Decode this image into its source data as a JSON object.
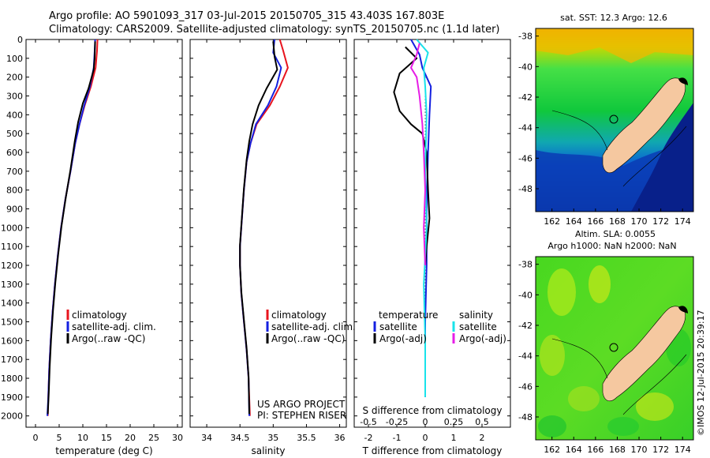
{
  "title_line1": "Argo profile: AO 5901093_317 03-Jul-2015 20150705_315 43.403S 167.803E",
  "title_line2": "Climatology: CARS2009. Satellite-adjusted climatology: synTS_20150705.nc (1.1d later)",
  "sst_title": "sat. SST: 12.3 Argo: 12.6",
  "sla_title1": "Altim. SLA: 0.0055",
  "sla_title2": "Argo h1000: NaN h2000: NaN",
  "project_line1": "US ARGO PROJECT",
  "project_line2": "PI: STEPHEN RISER",
  "watermark": "©IMOS 12-Jul-2015 20:39:17",
  "colors": {
    "climatology": "#e8141e",
    "satellite": "#1420e0",
    "argo": "#000000",
    "sal_satellite": "#19e3ea",
    "sal_argo": "#e61ee6",
    "land": "#f5c8a0"
  },
  "chart_data": [
    {
      "type": "line",
      "name": "temperature_profile",
      "xlabel": "temperature (deg C)",
      "ylabel": "",
      "xlim": [
        -2,
        31
      ],
      "ylim": [
        2060,
        0
      ],
      "xticks": [
        0,
        5,
        10,
        15,
        20,
        25,
        30
      ],
      "yticks": [
        0,
        100,
        200,
        300,
        400,
        500,
        600,
        700,
        800,
        900,
        1000,
        1100,
        1200,
        1300,
        1400,
        1500,
        1600,
        1700,
        1800,
        1900,
        2000
      ],
      "legend": [
        "climatology",
        "satellite-adj. clim.",
        "Argo(..raw -QC)"
      ],
      "legend_position": "lower-center",
      "series": [
        {
          "name": "climatology",
          "color_key": "climatology",
          "points": [
            [
              13.1,
              0
            ],
            [
              13.0,
              60
            ],
            [
              12.7,
              150
            ],
            [
              11.7,
              250
            ],
            [
              10.4,
              350
            ],
            [
              9.3,
              450
            ],
            [
              8.4,
              550
            ],
            [
              7.4,
              700
            ],
            [
              6.3,
              850
            ],
            [
              5.4,
              1000
            ],
            [
              4.7,
              1150
            ],
            [
              4.1,
              1300
            ],
            [
              3.6,
              1450
            ],
            [
              3.2,
              1600
            ],
            [
              2.9,
              1750
            ],
            [
              2.7,
              1900
            ],
            [
              2.6,
              2000
            ]
          ]
        },
        {
          "name": "satellite-adj. clim.",
          "color_key": "satellite",
          "points": [
            [
              12.6,
              0
            ],
            [
              12.5,
              60
            ],
            [
              12.3,
              150
            ],
            [
              11.5,
              250
            ],
            [
              10.3,
              350
            ],
            [
              9.3,
              450
            ],
            [
              8.4,
              550
            ],
            [
              7.4,
              700
            ],
            [
              6.3,
              850
            ],
            [
              5.4,
              1000
            ],
            [
              4.7,
              1150
            ],
            [
              4.1,
              1300
            ],
            [
              3.6,
              1450
            ],
            [
              3.2,
              1600
            ],
            [
              2.9,
              1750
            ],
            [
              2.7,
              1900
            ],
            [
              2.5,
              2000
            ]
          ]
        },
        {
          "name": "Argo(..raw -QC)",
          "color_key": "argo",
          "points": [
            [
              12.6,
              10
            ],
            [
              12.5,
              100
            ],
            [
              12.3,
              160
            ],
            [
              11.2,
              260
            ],
            [
              10.0,
              340
            ],
            [
              9.0,
              440
            ],
            [
              8.3,
              540
            ],
            [
              7.4,
              690
            ],
            [
              6.4,
              840
            ],
            [
              5.5,
              990
            ],
            [
              4.8,
              1140
            ],
            [
              4.2,
              1290
            ],
            [
              3.7,
              1440
            ],
            [
              3.3,
              1590
            ],
            [
              3.0,
              1740
            ],
            [
              2.8,
              1880
            ],
            [
              2.6,
              1990
            ]
          ]
        }
      ]
    },
    {
      "type": "line",
      "name": "salinity_profile",
      "xlabel": "salinity",
      "ylabel": "",
      "xlim": [
        33.75,
        36.1
      ],
      "ylim": [
        2060,
        0
      ],
      "xticks": [
        34,
        34.5,
        35,
        35.5,
        36
      ],
      "legend": [
        "climatology",
        "satellite-adj. clim.",
        "Argo(..raw -QC)"
      ],
      "legend_position": "lower-center",
      "series": [
        {
          "name": "climatology",
          "color_key": "climatology",
          "points": [
            [
              35.1,
              0
            ],
            [
              35.15,
              60
            ],
            [
              35.22,
              150
            ],
            [
              35.1,
              250
            ],
            [
              34.95,
              350
            ],
            [
              34.75,
              450
            ],
            [
              34.66,
              550
            ],
            [
              34.6,
              650
            ],
            [
              34.56,
              800
            ],
            [
              34.53,
              950
            ],
            [
              34.5,
              1100
            ],
            [
              34.5,
              1200
            ],
            [
              34.52,
              1350
            ],
            [
              34.56,
              1500
            ],
            [
              34.6,
              1650
            ],
            [
              34.63,
              1800
            ],
            [
              34.65,
              2000
            ]
          ]
        },
        {
          "name": "satellite-adj. clim.",
          "color_key": "satellite",
          "points": [
            [
              35.02,
              0
            ],
            [
              35.0,
              70
            ],
            [
              35.12,
              150
            ],
            [
              35.05,
              250
            ],
            [
              34.92,
              350
            ],
            [
              34.74,
              450
            ],
            [
              34.66,
              550
            ],
            [
              34.6,
              650
            ],
            [
              34.56,
              800
            ],
            [
              34.53,
              950
            ],
            [
              34.5,
              1100
            ],
            [
              34.5,
              1200
            ],
            [
              34.52,
              1350
            ],
            [
              34.56,
              1500
            ],
            [
              34.6,
              1650
            ],
            [
              34.63,
              1800
            ],
            [
              34.64,
              2000
            ]
          ]
        },
        {
          "name": "Argo(..raw -QC)",
          "color_key": "argo",
          "points": [
            [
              35.0,
              10
            ],
            [
              35.02,
              90
            ],
            [
              35.06,
              160
            ],
            [
              34.9,
              260
            ],
            [
              34.78,
              350
            ],
            [
              34.69,
              450
            ],
            [
              34.64,
              540
            ],
            [
              34.6,
              640
            ],
            [
              34.56,
              790
            ],
            [
              34.53,
              940
            ],
            [
              34.5,
              1090
            ],
            [
              34.5,
              1200
            ],
            [
              34.52,
              1340
            ],
            [
              34.56,
              1490
            ],
            [
              34.6,
              1640
            ],
            [
              34.63,
              1790
            ],
            [
              34.64,
              1990
            ]
          ]
        }
      ]
    },
    {
      "type": "line",
      "name": "difference_profile",
      "xlabel": "T difference from climatology",
      "top_label": "S difference from climatology",
      "xlim": [
        -2.5,
        3.0
      ],
      "ylim": [
        2060,
        0
      ],
      "xticks": [
        -2,
        -1,
        0,
        1,
        2
      ],
      "top_xticks": [
        -0.5,
        -0.25,
        0,
        0.25,
        0.5
      ],
      "legend_headers": [
        "temperature",
        "salinity"
      ],
      "legend": [
        "satellite",
        "Argo(-adj)",
        "satellite",
        "Argo(-adj)"
      ],
      "legend_position": "lower-center",
      "series": [
        {
          "name": "temperature satellite",
          "color_key": "satellite",
          "points": [
            [
              -0.5,
              0
            ],
            [
              -0.2,
              80
            ],
            [
              -0.1,
              150
            ],
            [
              0.2,
              250
            ],
            [
              0.15,
              400
            ],
            [
              0.1,
              600
            ],
            [
              0.05,
              900
            ],
            [
              0.05,
              1200
            ],
            [
              0.0,
              1500
            ],
            [
              0.0,
              1800
            ],
            [
              0.0,
              1900
            ]
          ]
        },
        {
          "name": "temperature Argo(-adj)",
          "color_key": "argo",
          "points": [
            [
              -0.7,
              40
            ],
            [
              -0.3,
              100
            ],
            [
              -0.9,
              180
            ],
            [
              -1.1,
              280
            ],
            [
              -0.9,
              380
            ],
            [
              -0.5,
              450
            ],
            [
              -0.1,
              500
            ],
            [
              0.05,
              600
            ],
            [
              0.1,
              800
            ],
            [
              0.15,
              950
            ],
            [
              0.05,
              1100
            ],
            [
              0.0,
              1200
            ]
          ]
        },
        {
          "name": "salinity satellite",
          "color_key": "sal_satellite",
          "points": [
            [
              -0.3,
              0
            ],
            [
              0.1,
              70
            ],
            [
              -0.05,
              150
            ],
            [
              0.0,
              250
            ],
            [
              0.05,
              400
            ],
            [
              0.0,
              700
            ],
            [
              0.05,
              1000
            ],
            [
              -0.05,
              1300
            ],
            [
              0.0,
              1600
            ],
            [
              0.0,
              1900
            ]
          ]
        },
        {
          "name": "salinity Argo(-adj)",
          "color_key": "sal_argo",
          "points": [
            [
              -0.2,
              20
            ],
            [
              -0.3,
              80
            ],
            [
              -0.5,
              150
            ],
            [
              -0.3,
              200
            ],
            [
              -0.2,
              300
            ],
            [
              -0.1,
              450
            ],
            [
              -0.05,
              600
            ],
            [
              0.0,
              800
            ],
            [
              -0.05,
              1000
            ],
            [
              0.0,
              1200
            ]
          ]
        }
      ]
    },
    {
      "type": "heatmap",
      "name": "sst_map",
      "title": "sat. SST: 12.3 Argo: 12.6",
      "xlim": [
        160.5,
        175
      ],
      "ylim": [
        -49.5,
        -37.5
      ],
      "xticks": [
        162,
        164,
        166,
        168,
        170,
        172,
        174
      ],
      "yticks": [
        -38,
        -40,
        -42,
        -44,
        -46,
        -48
      ],
      "marker": [
        167.803,
        -43.403
      ]
    },
    {
      "type": "heatmap",
      "name": "sla_map",
      "title": "Altim. SLA: 0.0055",
      "subtitle": "Argo h1000: NaN h2000: NaN",
      "xlim": [
        160.5,
        175
      ],
      "ylim": [
        -49.5,
        -37.5
      ],
      "xticks": [
        162,
        164,
        166,
        168,
        170,
        172,
        174
      ],
      "yticks": [
        -38,
        -40,
        -42,
        -44,
        -46,
        -48
      ],
      "marker": [
        167.803,
        -43.403
      ]
    }
  ]
}
